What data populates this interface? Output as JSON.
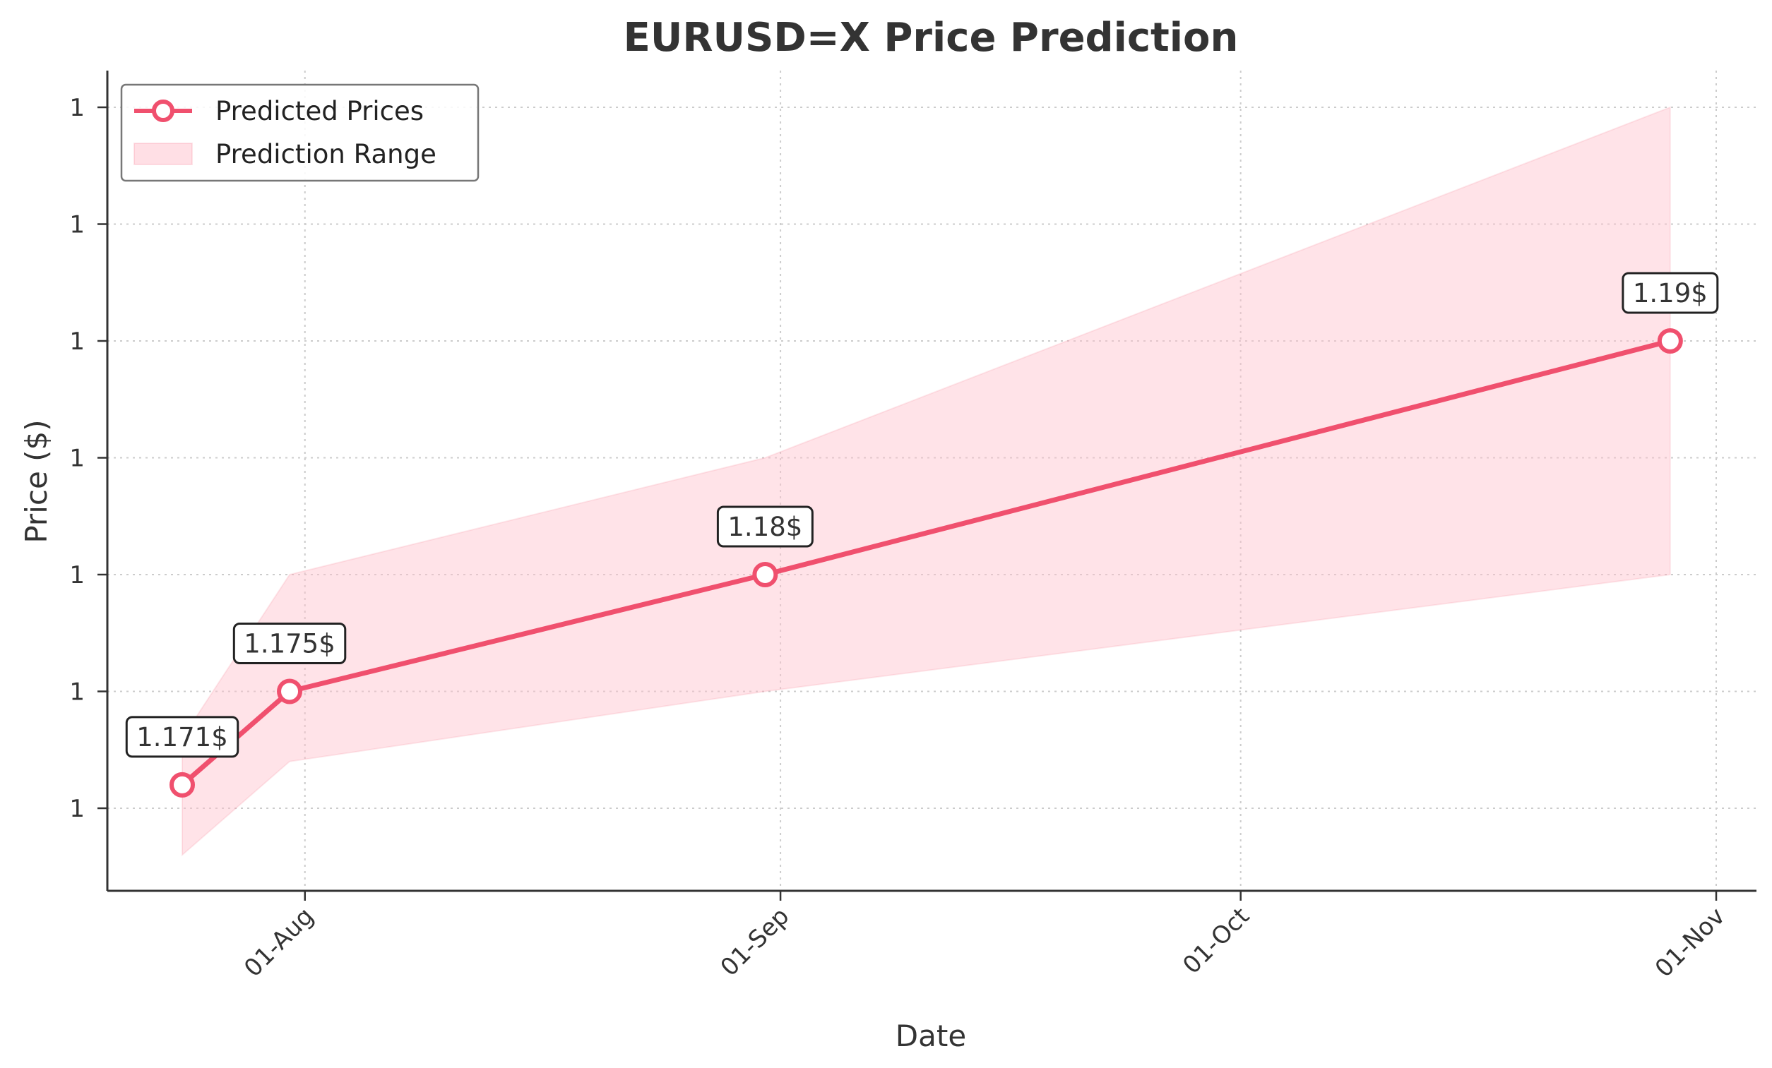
{
  "chart_data": {
    "type": "line",
    "title": "EURUSD=X Price Prediction",
    "xlabel": "Date",
    "ylabel": "Price ($)",
    "x_ticks": [
      "01-Aug",
      "01-Sep",
      "01-Oct",
      "01-Nov"
    ],
    "y_tick_labels": [
      "1",
      "1",
      "1",
      "1",
      "1",
      "1",
      "1"
    ],
    "grid": true,
    "legend_position": "top-left",
    "colors": {
      "line": "#f0506e",
      "band": "#ffc0cb",
      "axis": "#333333",
      "grid": "#cccccc"
    },
    "series": [
      {
        "name": "Predicted Prices",
        "x": [
          "2025-07-24",
          "2025-07-31",
          "2025-08-31",
          "2025-10-29"
        ],
        "values": [
          1.171,
          1.175,
          1.18,
          1.19
        ]
      }
    ],
    "band": {
      "name": "Prediction Range",
      "x": [
        "2025-07-24",
        "2025-07-31",
        "2025-08-31",
        "2025-10-29"
      ],
      "lower": [
        1.168,
        1.172,
        1.175,
        1.18
      ],
      "upper": [
        1.173,
        1.18,
        1.185,
        1.2
      ]
    },
    "annotations": [
      "1.171$",
      "1.175$",
      "1.18$",
      "1.19$"
    ]
  }
}
